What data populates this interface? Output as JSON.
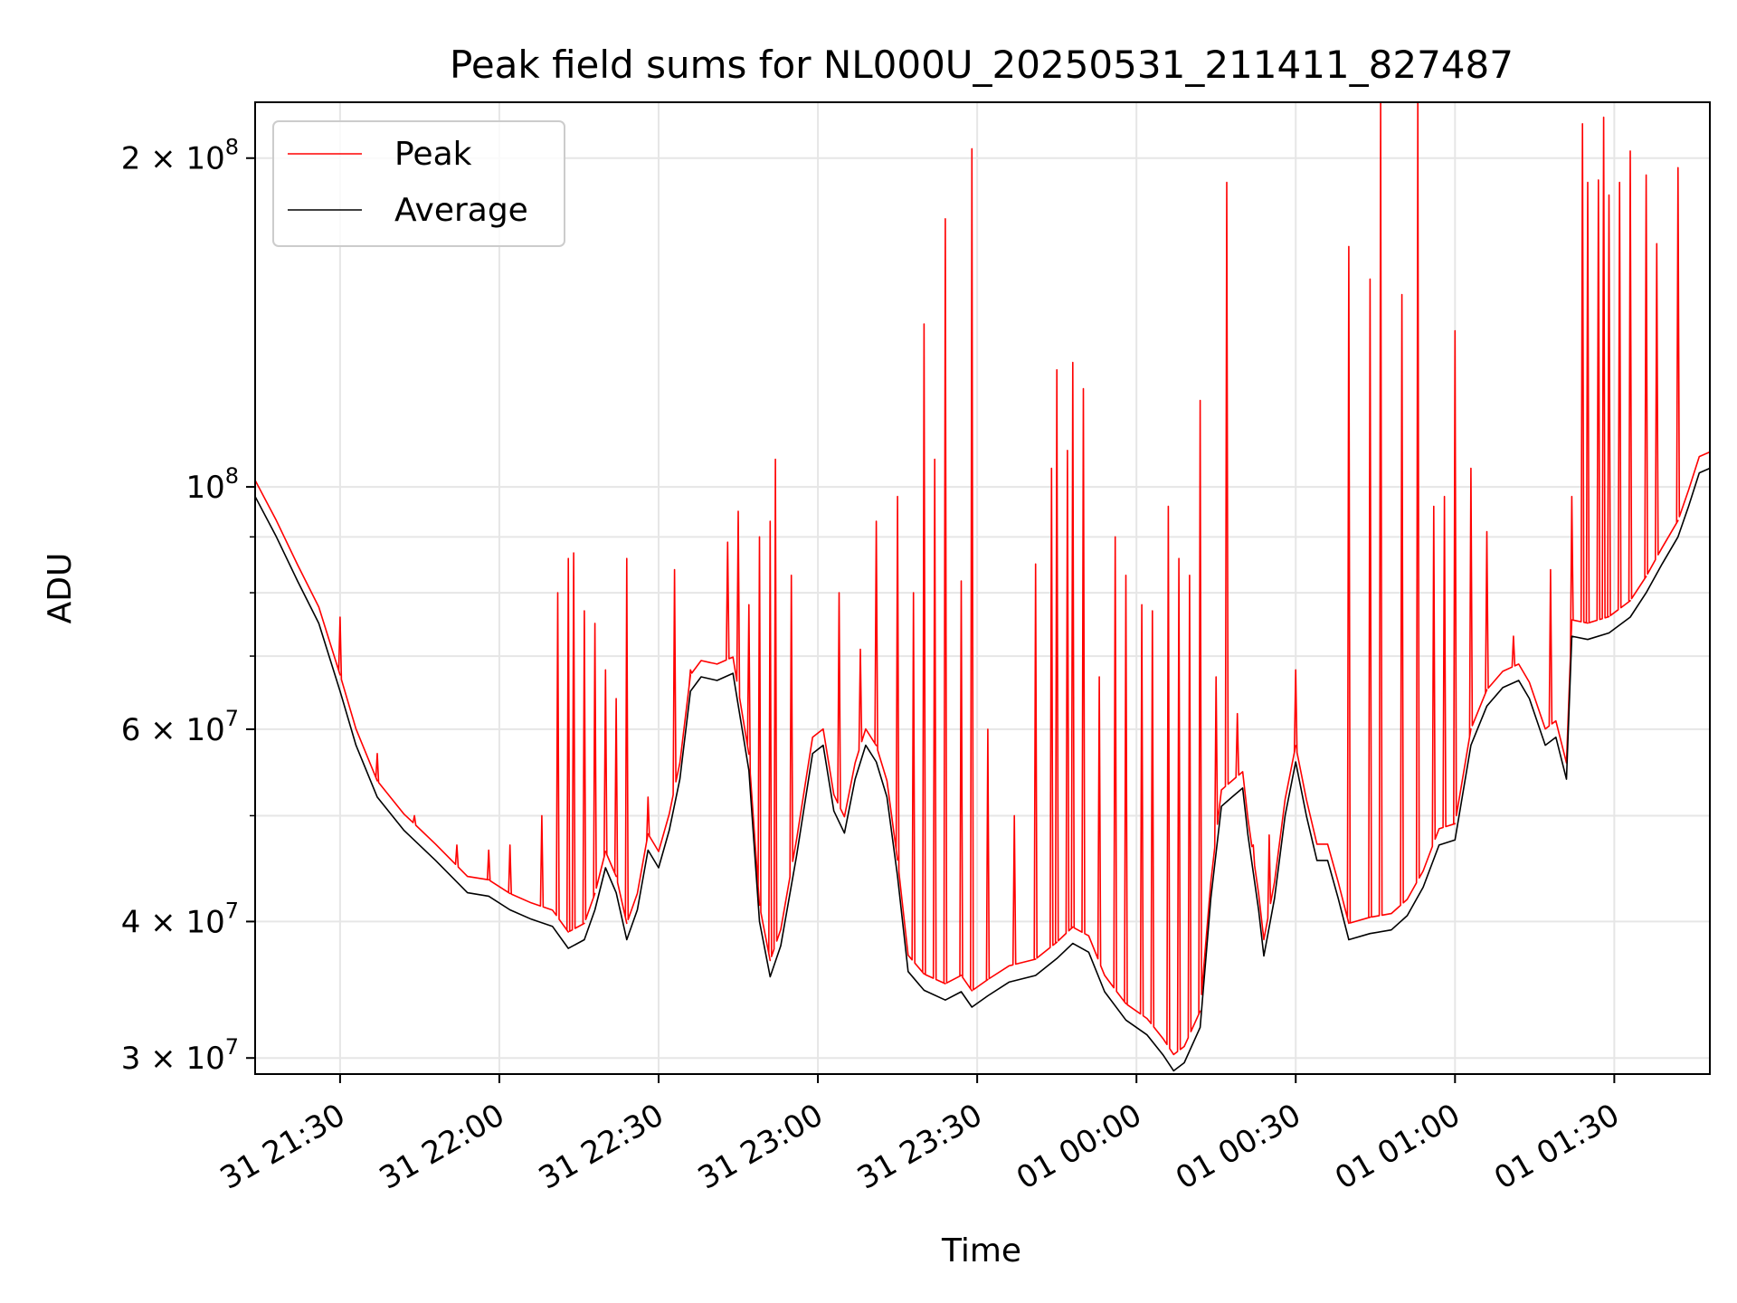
{
  "chart_data": {
    "type": "line",
    "title": "Peak field sums for NL000U_20250531_211411_827487",
    "xlabel": "Time",
    "ylabel": "ADU",
    "yscale": "log",
    "grid": true,
    "legend_position": "top-left",
    "xlim": [
      "2025-05-31 21:14",
      "2025-06-01 01:48"
    ],
    "ylim": [
      29000000,
      225000000
    ],
    "x_ticks": [
      {
        "time": "2025-05-31 21:30",
        "label": "31 21:30"
      },
      {
        "time": "2025-05-31 22:00",
        "label": "31 22:00"
      },
      {
        "time": "2025-05-31 22:30",
        "label": "31 22:30"
      },
      {
        "time": "2025-05-31 23:00",
        "label": "31 23:00"
      },
      {
        "time": "2025-05-31 23:30",
        "label": "31 23:30"
      },
      {
        "time": "2025-06-01 00:00",
        "label": "01 00:00"
      },
      {
        "time": "2025-06-01 00:30",
        "label": "01 00:30"
      },
      {
        "time": "2025-06-01 01:00",
        "label": "01 01:00"
      },
      {
        "time": "2025-06-01 01:30",
        "label": "01 01:30"
      }
    ],
    "y_ticks_major": [
      {
        "value": 30000000,
        "mantissa": "3",
        "exponent": "7"
      },
      {
        "value": 40000000,
        "mantissa": "4",
        "exponent": "7"
      },
      {
        "value": 60000000,
        "mantissa": "6",
        "exponent": "7"
      },
      {
        "value": 100000000,
        "mantissa": "",
        "exponent": "8"
      },
      {
        "value": 200000000,
        "mantissa": "2",
        "exponent": "8"
      }
    ],
    "y_ticks_minor": [
      50000000,
      70000000,
      80000000,
      90000000
    ],
    "series": [
      {
        "name": "Average",
        "color": "#000000",
        "points": [
          [
            "2025-05-31 21:14",
            98000000
          ],
          [
            "2025-05-31 21:18",
            90000000
          ],
          [
            "2025-05-31 21:22",
            82000000
          ],
          [
            "2025-05-31 21:26",
            75000000
          ],
          [
            "2025-05-31 21:30",
            65000000
          ],
          [
            "2025-05-31 21:33",
            58000000
          ],
          [
            "2025-05-31 21:37",
            52000000
          ],
          [
            "2025-05-31 21:42",
            48500000
          ],
          [
            "2025-05-31 21:48",
            45500000
          ],
          [
            "2025-05-31 21:54",
            42500000
          ],
          [
            "2025-05-31 21:58",
            42200000
          ],
          [
            "2025-05-31 22:02",
            41000000
          ],
          [
            "2025-05-31 22:06",
            40200000
          ],
          [
            "2025-05-31 22:10",
            39600000
          ],
          [
            "2025-05-31 22:13",
            37800000
          ],
          [
            "2025-05-31 22:16",
            38500000
          ],
          [
            "2025-05-31 22:18",
            41000000
          ],
          [
            "2025-05-31 22:20",
            44800000
          ],
          [
            "2025-05-31 22:22",
            42500000
          ],
          [
            "2025-05-31 22:24",
            38500000
          ],
          [
            "2025-05-31 22:26",
            41000000
          ],
          [
            "2025-05-31 22:28",
            46500000
          ],
          [
            "2025-05-31 22:30",
            44800000
          ],
          [
            "2025-05-31 22:32",
            48500000
          ],
          [
            "2025-05-31 22:34",
            54000000
          ],
          [
            "2025-05-31 22:36",
            65000000
          ],
          [
            "2025-05-31 22:38",
            67000000
          ],
          [
            "2025-05-31 22:41",
            66500000
          ],
          [
            "2025-05-31 22:44",
            67500000
          ],
          [
            "2025-05-31 22:47",
            55000000
          ],
          [
            "2025-05-31 22:49",
            40000000
          ],
          [
            "2025-05-31 22:51",
            35600000
          ],
          [
            "2025-05-31 22:53",
            38000000
          ],
          [
            "2025-05-31 22:56",
            46000000
          ],
          [
            "2025-05-31 22:59",
            57000000
          ],
          [
            "2025-05-31 23:01",
            58000000
          ],
          [
            "2025-05-31 23:03",
            50500000
          ],
          [
            "2025-05-31 23:05",
            48200000
          ],
          [
            "2025-05-31 23:07",
            54000000
          ],
          [
            "2025-05-31 23:09",
            58000000
          ],
          [
            "2025-05-31 23:11",
            56000000
          ],
          [
            "2025-05-31 23:13",
            52000000
          ],
          [
            "2025-05-31 23:15",
            44000000
          ],
          [
            "2025-05-31 23:17",
            36000000
          ],
          [
            "2025-05-31 23:20",
            34600000
          ],
          [
            "2025-05-31 23:24",
            33900000
          ],
          [
            "2025-05-31 23:27",
            34500000
          ],
          [
            "2025-05-31 23:29",
            33400000
          ],
          [
            "2025-05-31 23:32",
            34200000
          ],
          [
            "2025-05-31 23:36",
            35200000
          ],
          [
            "2025-05-31 23:41",
            35700000
          ],
          [
            "2025-05-31 23:45",
            37000000
          ],
          [
            "2025-05-31 23:48",
            38200000
          ],
          [
            "2025-05-31 23:51",
            37500000
          ],
          [
            "2025-05-31 23:54",
            34500000
          ],
          [
            "2025-05-31 23:58",
            32500000
          ],
          [
            "2025-06-01 00:02",
            31500000
          ],
          [
            "2025-06-01 00:05",
            30200000
          ],
          [
            "2025-06-01 00:07",
            29200000
          ],
          [
            "2025-06-01 00:09",
            29700000
          ],
          [
            "2025-06-01 00:12",
            32000000
          ],
          [
            "2025-06-01 00:14",
            42000000
          ],
          [
            "2025-06-01 00:16",
            51000000
          ],
          [
            "2025-06-01 00:18",
            52000000
          ],
          [
            "2025-06-01 00:20",
            53000000
          ],
          [
            "2025-06-01 00:21",
            48000000
          ],
          [
            "2025-06-01 00:23",
            41000000
          ],
          [
            "2025-06-01 00:24",
            37200000
          ],
          [
            "2025-06-01 00:26",
            42000000
          ],
          [
            "2025-06-01 00:28",
            50000000
          ],
          [
            "2025-06-01 00:30",
            56000000
          ],
          [
            "2025-06-01 00:32",
            50000000
          ],
          [
            "2025-06-01 00:34",
            45500000
          ],
          [
            "2025-06-01 00:36",
            45500000
          ],
          [
            "2025-06-01 00:38",
            42000000
          ],
          [
            "2025-06-01 00:40",
            38500000
          ],
          [
            "2025-06-01 00:44",
            39000000
          ],
          [
            "2025-06-01 00:48",
            39300000
          ],
          [
            "2025-06-01 00:51",
            40500000
          ],
          [
            "2025-06-01 00:54",
            43000000
          ],
          [
            "2025-06-01 00:57",
            47000000
          ],
          [
            "2025-06-01 01:00",
            47500000
          ],
          [
            "2025-06-01 01:03",
            58000000
          ],
          [
            "2025-06-01 01:06",
            63000000
          ],
          [
            "2025-06-01 01:09",
            65500000
          ],
          [
            "2025-06-01 01:12",
            66500000
          ],
          [
            "2025-06-01 01:14",
            64000000
          ],
          [
            "2025-06-01 01:17",
            58000000
          ],
          [
            "2025-06-01 01:19",
            59000000
          ],
          [
            "2025-06-01 01:21",
            54000000
          ],
          [
            "2025-06-01 01:22",
            73000000
          ],
          [
            "2025-06-01 01:25",
            72500000
          ],
          [
            "2025-06-01 01:29",
            73500000
          ],
          [
            "2025-06-01 01:33",
            76000000
          ],
          [
            "2025-06-01 01:36",
            80000000
          ],
          [
            "2025-06-01 01:39",
            85000000
          ],
          [
            "2025-06-01 01:42",
            90000000
          ],
          [
            "2025-06-01 01:44",
            96000000
          ],
          [
            "2025-06-01 01:46",
            103000000
          ],
          [
            "2025-06-01 01:48",
            104000000
          ]
        ]
      },
      {
        "name": "Peak",
        "color": "#ff0000",
        "spikes": [
          [
            "2025-05-31 21:30",
            76000000
          ],
          [
            "2025-05-31 21:37",
            57000000
          ],
          [
            "2025-05-31 21:44",
            50000000
          ],
          [
            "2025-05-31 21:52",
            47000000
          ],
          [
            "2025-05-31 21:58",
            46500000
          ],
          [
            "2025-05-31 22:02",
            47000000
          ],
          [
            "2025-05-31 22:08",
            50000000
          ],
          [
            "2025-05-31 22:11",
            80000000
          ],
          [
            "2025-05-31 22:13",
            86000000
          ],
          [
            "2025-05-31 22:14",
            87000000
          ],
          [
            "2025-05-31 22:16",
            77000000
          ],
          [
            "2025-05-31 22:18",
            75000000
          ],
          [
            "2025-05-31 22:20",
            68000000
          ],
          [
            "2025-05-31 22:22",
            64000000
          ],
          [
            "2025-05-31 22:24",
            86000000
          ],
          [
            "2025-05-31 22:28",
            52000000
          ],
          [
            "2025-05-31 22:33",
            84000000
          ],
          [
            "2025-05-31 22:36",
            68000000
          ],
          [
            "2025-05-31 22:40",
            69000000
          ],
          [
            "2025-05-31 22:43",
            89000000
          ],
          [
            "2025-05-31 22:45",
            95000000
          ],
          [
            "2025-05-31 22:47",
            78000000
          ],
          [
            "2025-05-31 22:49",
            90000000
          ],
          [
            "2025-05-31 22:51",
            93000000
          ],
          [
            "2025-05-31 22:52",
            106000000
          ],
          [
            "2025-05-31 22:55",
            83000000
          ],
          [
            "2025-05-31 23:04",
            80000000
          ],
          [
            "2025-05-31 23:08",
            71000000
          ],
          [
            "2025-05-31 23:11",
            93000000
          ],
          [
            "2025-05-31 23:15",
            98000000
          ],
          [
            "2025-05-31 23:18",
            80000000
          ],
          [
            "2025-05-31 23:20",
            141000000
          ],
          [
            "2025-05-31 23:22",
            106000000
          ],
          [
            "2025-05-31 23:24",
            176000000
          ],
          [
            "2025-05-31 23:27",
            82000000
          ],
          [
            "2025-05-31 23:29",
            204000000
          ],
          [
            "2025-05-31 23:32",
            60000000
          ],
          [
            "2025-05-31 23:37",
            50000000
          ],
          [
            "2025-05-31 23:41",
            85000000
          ],
          [
            "2025-05-31 23:44",
            104000000
          ],
          [
            "2025-05-31 23:45",
            128000000
          ],
          [
            "2025-05-31 23:47",
            108000000
          ],
          [
            "2025-05-31 23:48",
            130000000
          ],
          [
            "2025-05-31 23:50",
            123000000
          ],
          [
            "2025-05-31 23:53",
            67000000
          ],
          [
            "2025-05-31 23:56",
            90000000
          ],
          [
            "2025-05-31 23:58",
            83000000
          ],
          [
            "2025-06-01 00:01",
            78000000
          ],
          [
            "2025-06-01 00:03",
            77000000
          ],
          [
            "2025-06-01 00:06",
            96000000
          ],
          [
            "2025-06-01 00:08",
            86000000
          ],
          [
            "2025-06-01 00:10",
            83000000
          ],
          [
            "2025-06-01 00:12",
            120000000
          ],
          [
            "2025-06-01 00:15",
            67000000
          ],
          [
            "2025-06-01 00:17",
            190000000
          ],
          [
            "2025-06-01 00:19",
            62000000
          ],
          [
            "2025-06-01 00:22",
            47000000
          ],
          [
            "2025-06-01 00:25",
            48000000
          ],
          [
            "2025-06-01 00:30",
            68000000
          ],
          [
            "2025-06-01 00:40",
            166000000
          ],
          [
            "2025-06-01 00:44",
            155000000
          ],
          [
            "2025-06-01 00:46",
            225000000
          ],
          [
            "2025-06-01 00:50",
            150000000
          ],
          [
            "2025-06-01 00:53",
            225000000
          ],
          [
            "2025-06-01 00:56",
            96000000
          ],
          [
            "2025-06-01 00:58",
            98000000
          ],
          [
            "2025-06-01 01:00",
            139000000
          ],
          [
            "2025-06-01 01:03",
            104000000
          ],
          [
            "2025-06-01 01:06",
            91000000
          ],
          [
            "2025-06-01 01:11",
            73000000
          ],
          [
            "2025-06-01 01:18",
            84000000
          ],
          [
            "2025-06-01 01:22",
            98000000
          ],
          [
            "2025-06-01 01:24",
            215000000
          ],
          [
            "2025-06-01 01:25",
            190000000
          ],
          [
            "2025-06-01 01:27",
            191000000
          ],
          [
            "2025-06-01 01:28",
            218000000
          ],
          [
            "2025-06-01 01:29",
            185000000
          ],
          [
            "2025-06-01 01:31",
            190000000
          ],
          [
            "2025-06-01 01:33",
            203000000
          ],
          [
            "2025-06-01 01:36",
            193000000
          ],
          [
            "2025-06-01 01:38",
            167000000
          ],
          [
            "2025-06-01 01:42",
            196000000
          ]
        ]
      }
    ]
  }
}
